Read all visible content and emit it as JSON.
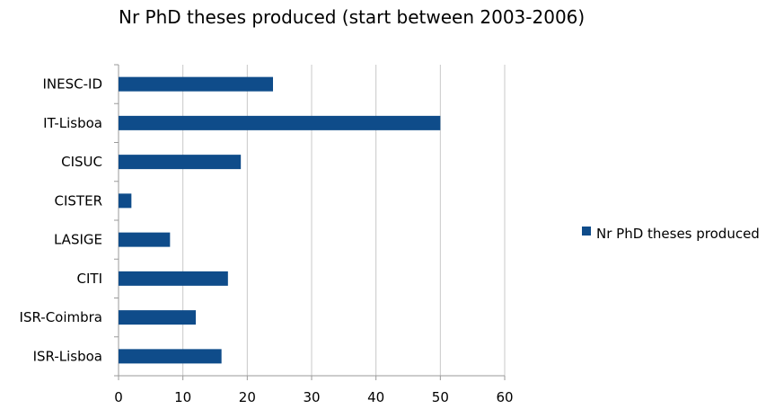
{
  "chart_data": {
    "type": "bar",
    "orientation": "horizontal",
    "title": "Nr PhD theses produced (start between 2003-2006)",
    "xlabel": "",
    "ylabel": "",
    "categories": [
      "INESC-ID",
      "IT-Lisboa",
      "CISUC",
      "CISTER",
      "LASIGE",
      "CITI",
      "ISR-Coimbra",
      "ISR-Lisboa"
    ],
    "series": [
      {
        "name": "Nr PhD theses produced",
        "values": [
          24,
          50,
          19,
          2,
          8,
          17,
          12,
          16
        ],
        "color": "#0f4c8a"
      }
    ],
    "xlim": [
      0,
      60
    ],
    "xticks": [
      "0",
      "10",
      "20",
      "30",
      "40",
      "50",
      "60"
    ],
    "grid": "vertical",
    "legend_position": "right"
  }
}
